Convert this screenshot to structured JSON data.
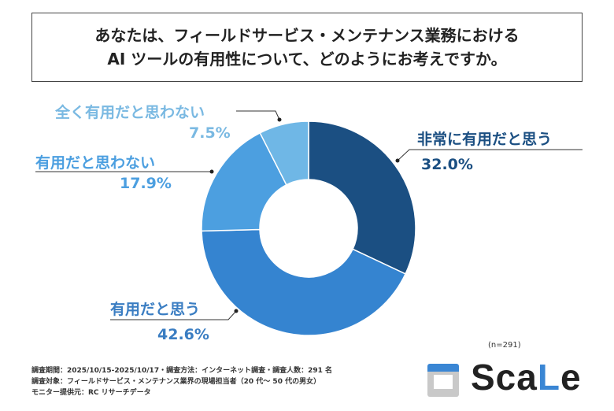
{
  "title_lines": [
    "あなたは、フィールドサービス・メンテナンス業務における",
    "AI ツールの有用性について、どのようにお考えですか。"
  ],
  "chart_data": {
    "type": "pie",
    "donut": true,
    "categories": [
      "非常に有用だと思う",
      "有用だと思う",
      "有用だと思わない",
      "全く有用だと思わない"
    ],
    "values": [
      32.0,
      42.6,
      17.9,
      7.5
    ],
    "value_labels": [
      "32.0%",
      "42.6%",
      "17.9%",
      "7.5%"
    ],
    "colors": [
      "#1b4f82",
      "#3584d0",
      "#4c9fe0",
      "#6fb7e6"
    ],
    "label_colors": [
      "#1b4f82",
      "#3a7dc2",
      "#4c9fe0",
      "#7ab9e2"
    ]
  },
  "sample": "(n=291)",
  "footer": [
    "調査期間：2025/10/15-2025/10/17・調査方法：インターネット調査・調査人数：291 名",
    "調査対象：フィールドサービス・メンテナンス業界の現場担当者（20 代～ 50 代の男女）",
    "モニター提供元：RC リサーチデータ"
  ],
  "logo": {
    "text": "ScaLe",
    "accent": "#3a86d4"
  }
}
